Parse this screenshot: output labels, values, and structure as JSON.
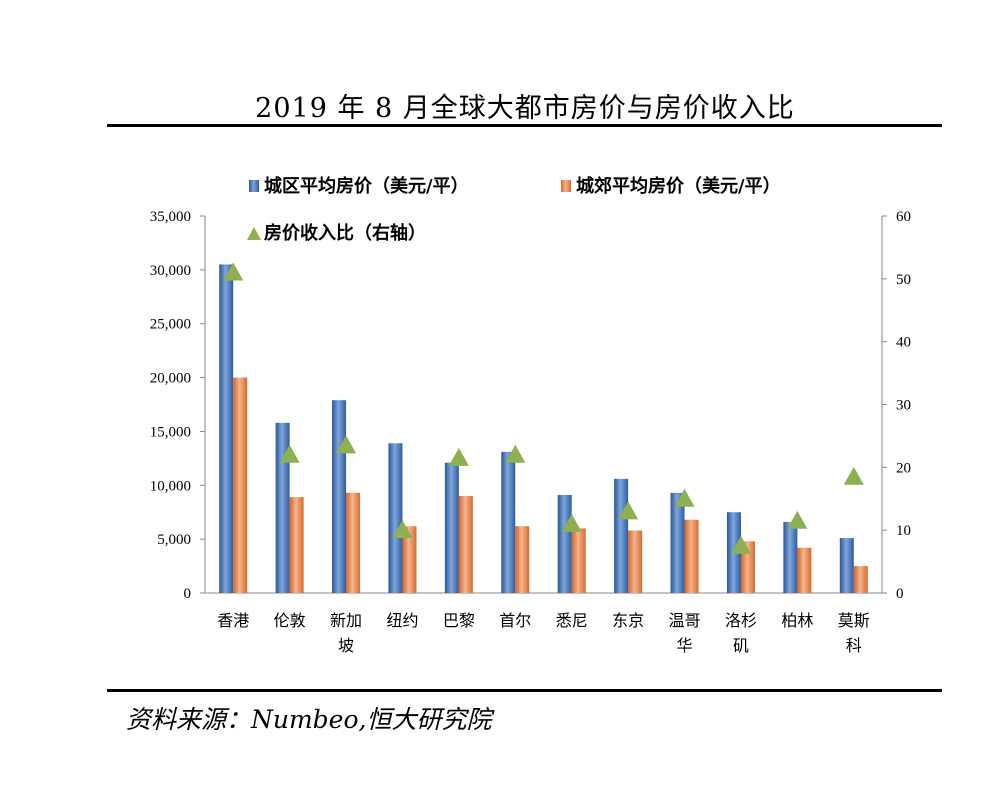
{
  "header": {
    "title": "2019 年 8 月全球大都市房价与房价收入比"
  },
  "footer": {
    "source": "资料来源：Numbeo,恒大研究院"
  },
  "chart_data": {
    "type": "bar",
    "categories": [
      [
        "香港"
      ],
      [
        "伦敦"
      ],
      [
        "新加",
        "坡"
      ],
      [
        "纽约"
      ],
      [
        "巴黎"
      ],
      [
        "首尔"
      ],
      [
        "悉尼"
      ],
      [
        "东京"
      ],
      [
        "温哥",
        "华"
      ],
      [
        "洛杉",
        "矶"
      ],
      [
        "柏林"
      ],
      [
        "莫斯",
        "科"
      ]
    ],
    "series": [
      {
        "name": "城区平均房价（美元/平）",
        "axis": "left",
        "marker": "bar",
        "color": "#4a7ebf",
        "values": [
          30500,
          15800,
          17900,
          13900,
          12100,
          13100,
          9100,
          10600,
          9300,
          7500,
          6600,
          5100
        ]
      },
      {
        "name": "城郊平均房价（美元/平）",
        "axis": "left",
        "marker": "bar",
        "color": "#e8834a",
        "values": [
          20000,
          8900,
          9300,
          6200,
          9000,
          6200,
          6000,
          5800,
          6800,
          4800,
          4200,
          2500
        ]
      },
      {
        "name": "房价收入比（右轴）",
        "axis": "right",
        "marker": "triangle",
        "color": "#8db050",
        "values": [
          51,
          22,
          23.5,
          10,
          21.5,
          22,
          11,
          13,
          15,
          7.5,
          11.5,
          18.5
        ]
      }
    ],
    "yleft": {
      "ylim": [
        0,
        35000
      ],
      "ticks": [
        "0",
        "5,000",
        "10,000",
        "15,000",
        "20,000",
        "25,000",
        "30,000",
        "35,000"
      ]
    },
    "yright": {
      "ylim": [
        0,
        60
      ],
      "ticks": [
        "0",
        "10",
        "20",
        "30",
        "40",
        "50",
        "60"
      ]
    },
    "legend": {
      "placement": "top-left"
    },
    "grid": false
  }
}
